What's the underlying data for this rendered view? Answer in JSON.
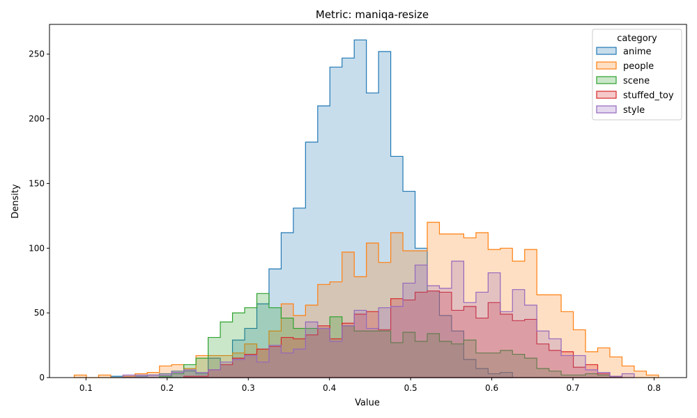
{
  "chart_data": {
    "type": "histogram",
    "title": "Metric: maniqa-resize",
    "xlabel": "Value",
    "ylabel": "Density",
    "xlim": [
      0.055,
      0.84
    ],
    "ylim": [
      0,
      273
    ],
    "xticks": [
      0.1,
      0.2,
      0.3,
      0.4,
      0.5,
      0.6,
      0.7,
      0.8
    ],
    "xtick_labels": [
      "0.1",
      "0.2",
      "0.3",
      "0.4",
      "0.5",
      "0.6",
      "0.7",
      "0.8"
    ],
    "yticks": [
      0,
      50,
      100,
      150,
      200,
      250
    ],
    "ytick_labels": [
      "0",
      "50",
      "100",
      "150",
      "200",
      "250"
    ],
    "bin_start": 0.0855,
    "bin_width": 0.015,
    "legend": {
      "title": "category",
      "position": "top-right"
    },
    "series": [
      {
        "name": "anime",
        "color": "#1f77b4",
        "values": [
          0,
          0,
          0,
          1,
          1,
          1,
          2,
          3,
          5,
          5,
          3,
          15,
          10,
          29,
          38,
          57,
          84,
          112,
          131,
          182,
          210,
          240,
          247,
          261,
          220,
          252,
          171,
          144,
          100,
          67,
          48,
          36,
          14,
          7,
          3,
          4,
          0,
          0,
          0,
          0,
          0,
          0,
          0,
          0,
          0,
          0,
          0,
          0,
          0,
          0,
          0,
          0,
          0,
          0
        ]
      },
      {
        "name": "people",
        "color": "#ff7f0e",
        "values": [
          2,
          0,
          2,
          0,
          1,
          3,
          4,
          9,
          10,
          7,
          17,
          17,
          17,
          19,
          26,
          22,
          36,
          57,
          48,
          56,
          72,
          74,
          97,
          78,
          104,
          89,
          112,
          98,
          98,
          120,
          111,
          111,
          108,
          112,
          99,
          100,
          90,
          99,
          64,
          64,
          51,
          37,
          20,
          23,
          16,
          9,
          5,
          2,
          0,
          0,
          0,
          0,
          0,
          0
        ]
      },
      {
        "name": "scene",
        "color": "#2ca02c",
        "values": [
          0,
          0,
          0,
          0,
          0,
          0,
          0,
          1,
          3,
          10,
          15,
          31,
          43,
          50,
          54,
          65,
          54,
          46,
          38,
          38,
          38,
          47,
          40,
          36,
          36,
          36,
          27,
          35,
          28,
          34,
          28,
          26,
          29,
          19,
          19,
          21,
          18,
          15,
          7,
          5,
          2,
          2,
          3,
          2,
          1,
          0,
          0,
          0,
          0,
          0,
          0,
          0,
          0,
          0
        ]
      },
      {
        "name": "stuffed_toy",
        "color": "#d62728",
        "values": [
          0,
          0,
          0,
          0,
          0,
          0,
          0,
          0,
          0,
          1,
          1,
          6,
          10,
          15,
          18,
          22,
          24,
          31,
          30,
          33,
          40,
          30,
          42,
          49,
          51,
          37,
          61,
          60,
          66,
          67,
          66,
          52,
          55,
          46,
          58,
          49,
          44,
          45,
          26,
          21,
          20,
          8,
          10,
          3,
          1,
          0,
          0,
          0,
          0,
          0,
          0,
          0,
          0,
          0
        ]
      },
      {
        "name": "style",
        "color": "#9467bd",
        "values": [
          0,
          0,
          0,
          0,
          2,
          2,
          2,
          2,
          4,
          6,
          4,
          6,
          12,
          14,
          17,
          12,
          25,
          19,
          22,
          43,
          38,
          28,
          40,
          52,
          38,
          54,
          55,
          73,
          87,
          71,
          69,
          90,
          58,
          66,
          81,
          51,
          68,
          56,
          36,
          30,
          17,
          17,
          6,
          4,
          1,
          3,
          0,
          0,
          0,
          0,
          0,
          0,
          0,
          0
        ]
      }
    ]
  }
}
